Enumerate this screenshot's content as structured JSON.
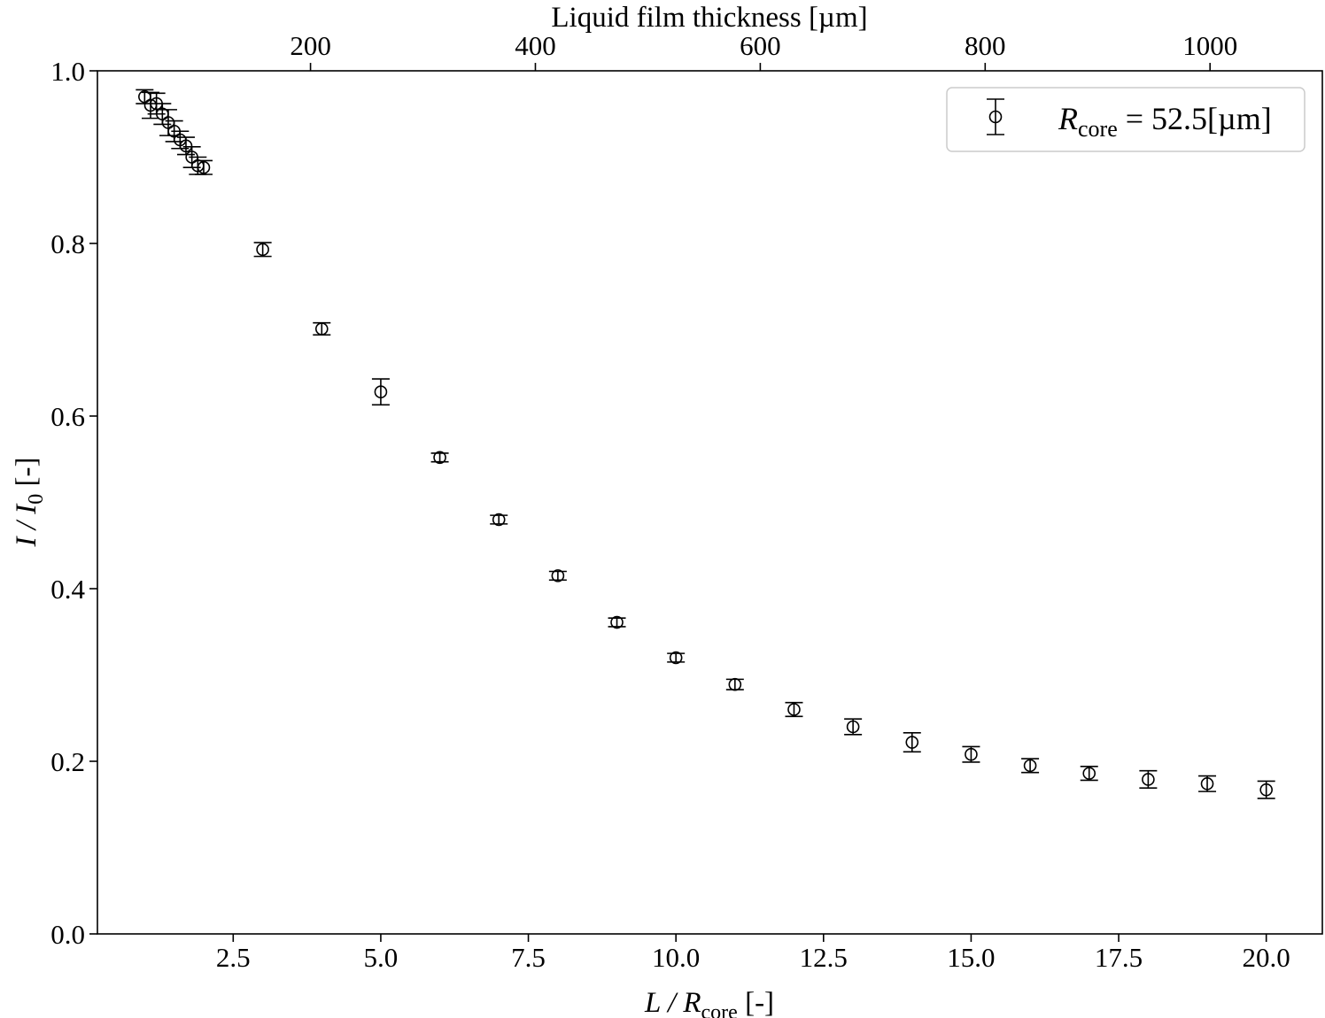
{
  "chart_data": {
    "type": "scatter",
    "style": "errorbar",
    "marker": "open-circle",
    "marker_color": "#000000",
    "xlabel": "L / R_core [-]",
    "xlabel_parts": {
      "main": "L / R",
      "sub": "core",
      "suffix": " [-]"
    },
    "ylabel": "I / I_0 [-]",
    "ylabel_parts": {
      "main": "I / I",
      "sub": "0",
      "suffix": " [-]"
    },
    "top_xlabel": "Liquid film thickness [µm]",
    "xlim": [
      0.2,
      20.95
    ],
    "ylim": [
      0.0,
      1.0
    ],
    "x_ticks": [
      "2.5",
      "5.0",
      "7.5",
      "10.0",
      "12.5",
      "15.0",
      "17.5",
      "20.0"
    ],
    "y_ticks": [
      "0.0",
      "0.2",
      "0.4",
      "0.6",
      "0.8",
      "1.0"
    ],
    "top_x_ticks": [
      "200",
      "400",
      "600",
      "800",
      "1000"
    ],
    "top_x_scale_um_per_unit": 52.5,
    "grid": false,
    "legend": {
      "placement": "top-right",
      "label_parts": {
        "main": "R",
        "sub": "core",
        "suffix": " = 52.5[µm]"
      },
      "label": "R_core = 52.5[µm]"
    },
    "series": [
      {
        "name": "R_core = 52.5[µm]",
        "x": [
          1.0,
          1.1,
          1.2,
          1.3,
          1.4,
          1.5,
          1.6,
          1.7,
          1.8,
          1.9,
          2.0,
          3.0,
          4.0,
          5.0,
          6.0,
          7.0,
          8.0,
          9.0,
          10.0,
          11.0,
          12.0,
          13.0,
          14.0,
          15.0,
          16.0,
          17.0,
          18.0,
          19.0,
          20.0
        ],
        "y": [
          0.97,
          0.96,
          0.962,
          0.95,
          0.94,
          0.93,
          0.92,
          0.913,
          0.9,
          0.89,
          0.888,
          0.793,
          0.701,
          0.628,
          0.552,
          0.48,
          0.415,
          0.361,
          0.32,
          0.289,
          0.26,
          0.24,
          0.222,
          0.208,
          0.195,
          0.186,
          0.179,
          0.174,
          0.167
        ],
        "yerr": [
          0.008,
          0.015,
          0.012,
          0.012,
          0.015,
          0.012,
          0.01,
          0.01,
          0.012,
          0.01,
          0.008,
          0.008,
          0.007,
          0.015,
          0.005,
          0.005,
          0.005,
          0.005,
          0.005,
          0.006,
          0.008,
          0.009,
          0.011,
          0.009,
          0.008,
          0.008,
          0.01,
          0.009,
          0.01
        ]
      }
    ]
  }
}
